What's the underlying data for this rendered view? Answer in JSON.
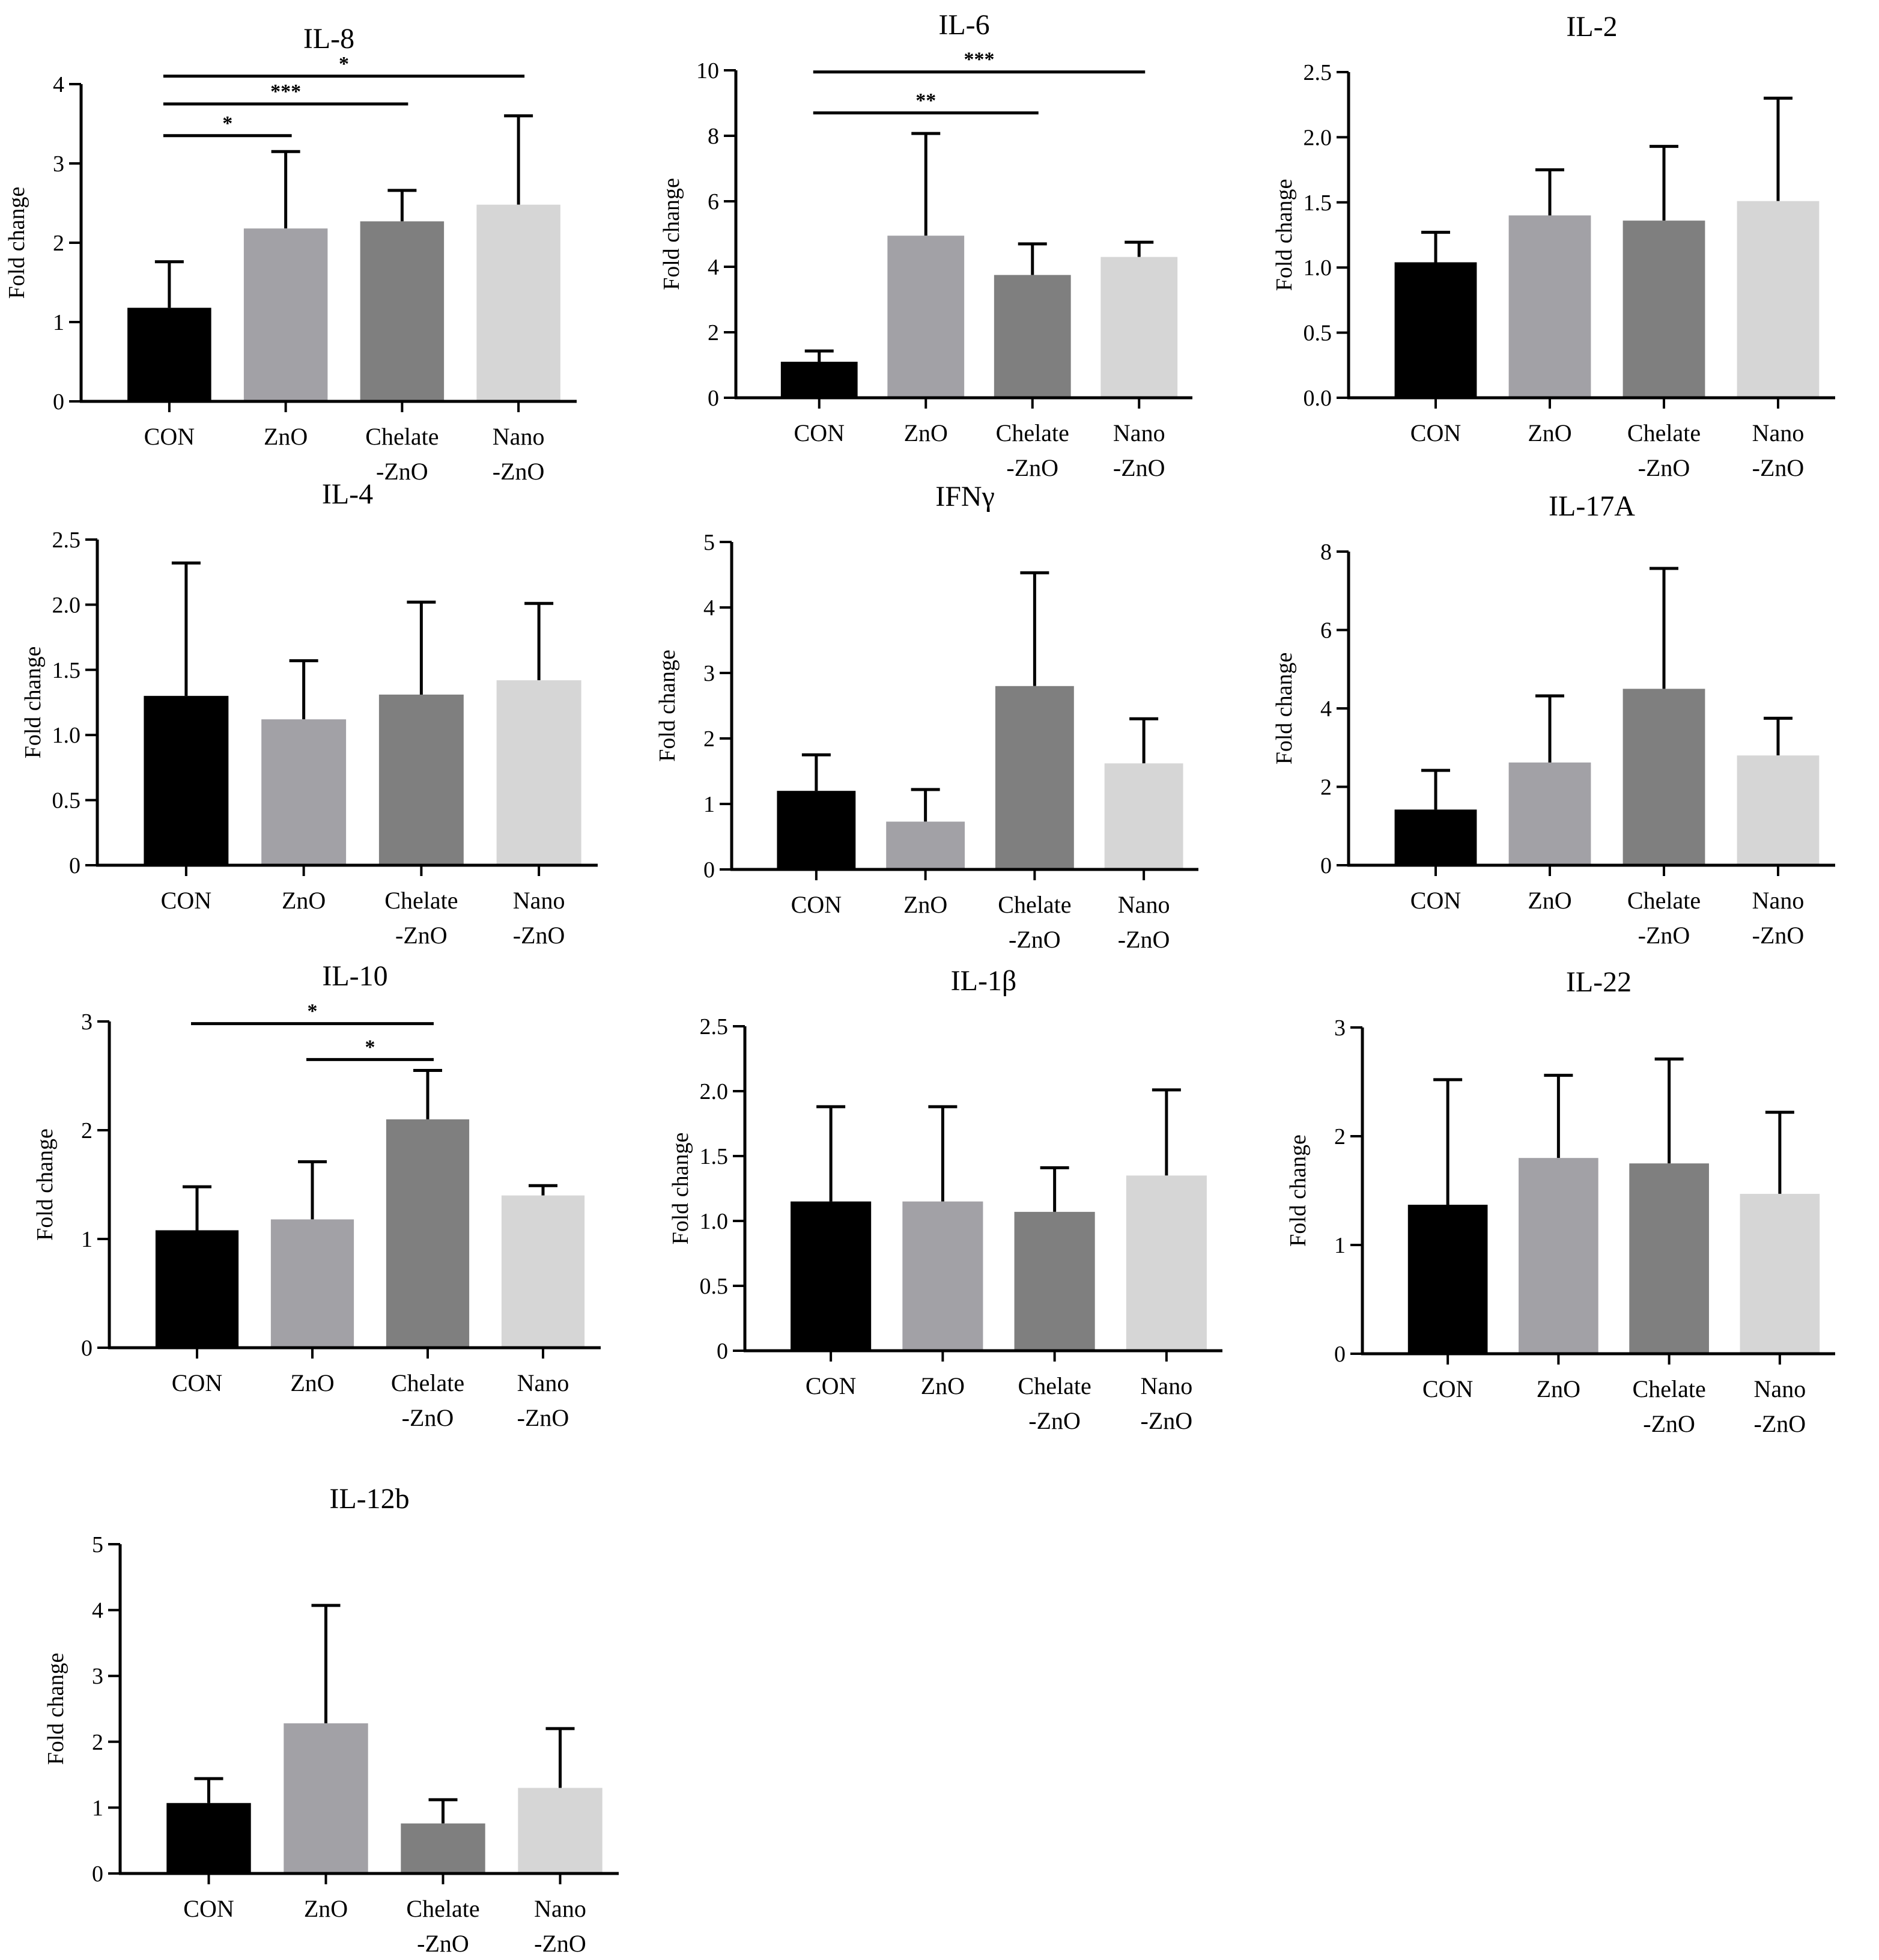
{
  "colors": [
    "#000000",
    "#a2a1a6",
    "#7f7f7f",
    "#d6d6d6"
  ],
  "chart_data": [
    {
      "type": "bar",
      "title": "IL-8",
      "ylabel": "Fold change",
      "categories": [
        [
          "CON"
        ],
        [
          "ZnO"
        ],
        [
          "Chelate",
          "-ZnO"
        ],
        [
          "Nano",
          "-ZnO"
        ]
      ],
      "values": [
        1.18,
        2.18,
        2.27,
        2.48
      ],
      "errors": [
        0.58,
        0.97,
        0.39,
        1.12
      ],
      "ylim": [
        0,
        4
      ],
      "ticks": [
        {
          "v": 0,
          "label": "0"
        },
        {
          "v": 1,
          "label": "1"
        },
        {
          "v": 2,
          "label": "2"
        },
        {
          "v": 3,
          "label": "3"
        },
        {
          "v": 4,
          "label": "4"
        }
      ],
      "significance": [
        {
          "from": 0,
          "to": 1,
          "label": "*",
          "level": 3.35
        },
        {
          "from": 0,
          "to": 2,
          "label": "***",
          "level": 3.75
        },
        {
          "from": 0,
          "to": 3,
          "label": "*",
          "level": 4.1
        }
      ]
    },
    {
      "type": "bar",
      "title": "IL-6",
      "ylabel": "Fold change",
      "categories": [
        [
          "CON"
        ],
        [
          "ZnO"
        ],
        [
          "Chelate",
          "-ZnO"
        ],
        [
          "Nano",
          "-ZnO"
        ]
      ],
      "values": [
        1.1,
        4.95,
        3.75,
        4.3
      ],
      "errors": [
        0.33,
        3.12,
        0.95,
        0.45
      ],
      "ylim": [
        0,
        10
      ],
      "ticks": [
        {
          "v": 0,
          "label": "0"
        },
        {
          "v": 2,
          "label": "2"
        },
        {
          "v": 4,
          "label": "4"
        },
        {
          "v": 6,
          "label": "6"
        },
        {
          "v": 8,
          "label": "8"
        },
        {
          "v": 10,
          "label": "10"
        }
      ],
      "significance": [
        {
          "from": 0,
          "to": 2,
          "label": "**",
          "level": 8.7
        },
        {
          "from": 0,
          "to": 3,
          "label": "***",
          "level": 9.95
        }
      ]
    },
    {
      "type": "bar",
      "title": "IL-2",
      "ylabel": "Fold change",
      "categories": [
        [
          "CON"
        ],
        [
          "ZnO"
        ],
        [
          "Chelate",
          "-ZnO"
        ],
        [
          "Nano",
          "-ZnO"
        ]
      ],
      "values": [
        1.04,
        1.4,
        1.36,
        1.51
      ],
      "errors": [
        0.23,
        0.35,
        0.57,
        0.79
      ],
      "ylim": [
        0,
        2.5
      ],
      "ticks": [
        {
          "v": 0,
          "label": "0.0"
        },
        {
          "v": 0.5,
          "label": "0.5"
        },
        {
          "v": 1,
          "label": "1.0"
        },
        {
          "v": 1.5,
          "label": "1.5"
        },
        {
          "v": 2,
          "label": "2.0"
        },
        {
          "v": 2.5,
          "label": "2.5"
        }
      ],
      "significance": []
    },
    {
      "type": "bar",
      "title": "IL-4",
      "ylabel": "Fold change",
      "categories": [
        [
          "CON"
        ],
        [
          "ZnO"
        ],
        [
          "Chelate",
          "-ZnO"
        ],
        [
          "Nano",
          "-ZnO"
        ]
      ],
      "values": [
        1.3,
        1.12,
        1.31,
        1.42
      ],
      "errors": [
        1.02,
        0.45,
        0.71,
        0.59
      ],
      "ylim": [
        0,
        2.5
      ],
      "ticks": [
        {
          "v": 0,
          "label": "0"
        },
        {
          "v": 0.5,
          "label": "0.5"
        },
        {
          "v": 1,
          "label": "1.0"
        },
        {
          "v": 1.5,
          "label": "1.5"
        },
        {
          "v": 2,
          "label": "2.0"
        },
        {
          "v": 2.5,
          "label": "2.5"
        }
      ],
      "significance": []
    },
    {
      "type": "bar",
      "title": "IFNγ",
      "ylabel": "Fold change",
      "categories": [
        [
          "CON"
        ],
        [
          "ZnO"
        ],
        [
          "Chelate",
          "-ZnO"
        ],
        [
          "Nano",
          "-ZnO"
        ]
      ],
      "values": [
        1.2,
        0.73,
        2.8,
        1.62
      ],
      "errors": [
        0.55,
        0.49,
        1.73,
        0.68
      ],
      "ylim": [
        0,
        5
      ],
      "ticks": [
        {
          "v": 0,
          "label": "0"
        },
        {
          "v": 1,
          "label": "1"
        },
        {
          "v": 2,
          "label": "2"
        },
        {
          "v": 3,
          "label": "3"
        },
        {
          "v": 4,
          "label": "4"
        },
        {
          "v": 5,
          "label": "5"
        }
      ],
      "significance": []
    },
    {
      "type": "bar",
      "title": "IL-17A",
      "ylabel": "Fold change",
      "categories": [
        [
          "CON"
        ],
        [
          "ZnO"
        ],
        [
          "Chelate",
          "-ZnO"
        ],
        [
          "Nano",
          "-ZnO"
        ]
      ],
      "values": [
        1.42,
        2.62,
        4.5,
        2.8
      ],
      "errors": [
        1.0,
        1.7,
        3.07,
        0.95
      ],
      "ylim": [
        0,
        8
      ],
      "ticks": [
        {
          "v": 0,
          "label": "0"
        },
        {
          "v": 2,
          "label": "2"
        },
        {
          "v": 4,
          "label": "4"
        },
        {
          "v": 6,
          "label": "6"
        },
        {
          "v": 8,
          "label": "8"
        }
      ],
      "significance": []
    },
    {
      "type": "bar",
      "title": "IL-10",
      "ylabel": "Fold change",
      "categories": [
        [
          "CON"
        ],
        [
          "ZnO"
        ],
        [
          "Chelate",
          "-ZnO"
        ],
        [
          "Nano",
          "-ZnO"
        ]
      ],
      "values": [
        1.08,
        1.18,
        2.1,
        1.4
      ],
      "errors": [
        0.4,
        0.53,
        0.45,
        0.09
      ],
      "ylim": [
        0,
        3
      ],
      "ticks": [
        {
          "v": 0,
          "label": "0"
        },
        {
          "v": 1,
          "label": "1"
        },
        {
          "v": 2,
          "label": "2"
        },
        {
          "v": 3,
          "label": "3"
        }
      ],
      "significance": [
        {
          "from": 1,
          "to": 2,
          "label": "*",
          "level": 2.65
        },
        {
          "from": 0,
          "to": 2,
          "label": "*",
          "level": 2.98
        }
      ]
    },
    {
      "type": "bar",
      "title": "IL-1β",
      "ylabel": "Fold change",
      "categories": [
        [
          "CON"
        ],
        [
          "ZnO"
        ],
        [
          "Chelate",
          "-ZnO"
        ],
        [
          "Nano",
          "-ZnO"
        ]
      ],
      "values": [
        1.15,
        1.15,
        1.07,
        1.35
      ],
      "errors": [
        0.73,
        0.73,
        0.34,
        0.66
      ],
      "ylim": [
        0,
        2.5
      ],
      "ticks": [
        {
          "v": 0,
          "label": "0"
        },
        {
          "v": 0.5,
          "label": "0.5"
        },
        {
          "v": 1,
          "label": "1.0"
        },
        {
          "v": 1.5,
          "label": "1.5"
        },
        {
          "v": 2,
          "label": "2.0"
        },
        {
          "v": 2.5,
          "label": "2.5"
        }
      ],
      "significance": []
    },
    {
      "type": "bar",
      "title": "IL-22",
      "ylabel": "Fold change",
      "categories": [
        [
          "CON"
        ],
        [
          "ZnO"
        ],
        [
          "Chelate",
          "-ZnO"
        ],
        [
          "Nano",
          "-ZnO"
        ]
      ],
      "values": [
        1.37,
        1.8,
        1.75,
        1.47
      ],
      "errors": [
        1.15,
        0.76,
        0.96,
        0.75
      ],
      "ylim": [
        0,
        3
      ],
      "ticks": [
        {
          "v": 0,
          "label": "0"
        },
        {
          "v": 1,
          "label": "1"
        },
        {
          "v": 2,
          "label": "2"
        },
        {
          "v": 3,
          "label": "3"
        }
      ],
      "significance": []
    },
    {
      "type": "bar",
      "title": "IL-12b",
      "ylabel": "Fold change",
      "categories": [
        [
          "CON"
        ],
        [
          "ZnO"
        ],
        [
          "Chelate",
          "-ZnO"
        ],
        [
          "Nano",
          "-ZnO"
        ]
      ],
      "values": [
        1.07,
        2.28,
        0.76,
        1.3
      ],
      "errors": [
        0.37,
        1.79,
        0.36,
        0.9
      ],
      "ylim": [
        0,
        5
      ],
      "ticks": [
        {
          "v": 0,
          "label": "0"
        },
        {
          "v": 1,
          "label": "1"
        },
        {
          "v": 2,
          "label": "2"
        },
        {
          "v": 3,
          "label": "3"
        },
        {
          "v": 4,
          "label": "4"
        },
        {
          "v": 5,
          "label": "5"
        }
      ],
      "significance": []
    }
  ]
}
